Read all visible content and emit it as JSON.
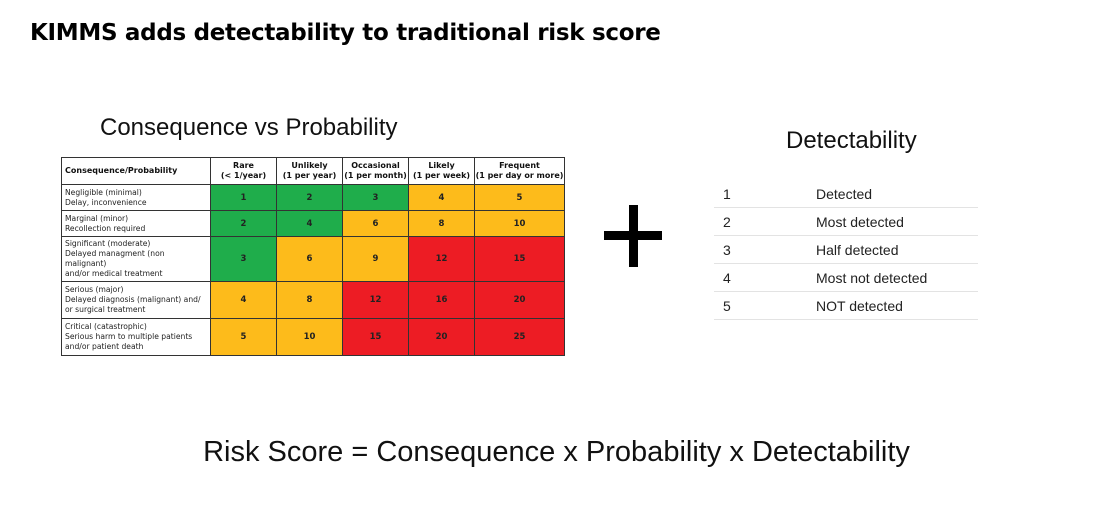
{
  "slide_title": "KIMMS adds detectability to traditional risk score",
  "matrix": {
    "title": "Consequence vs Probability",
    "corner_header": "Consequence/Probability",
    "columns": [
      {
        "name": "Rare",
        "sub": "(< 1/year)"
      },
      {
        "name": "Unlikely",
        "sub": "(1 per year)"
      },
      {
        "name": "Occasional",
        "sub": "(1 per month)"
      },
      {
        "name": "Likely",
        "sub": "(1 per week)"
      },
      {
        "name": "Frequent",
        "sub": "(1 per day or more)"
      }
    ],
    "rows": [
      {
        "label": [
          "Negligible (minimal)",
          "Delay, inconvenience"
        ],
        "values": [
          "1",
          "2",
          "3",
          "4",
          "5"
        ],
        "colors": [
          "green",
          "green",
          "green",
          "yellow",
          "yellow"
        ]
      },
      {
        "label": [
          "Marginal (minor)",
          "Recollection required"
        ],
        "values": [
          "2",
          "4",
          "6",
          "8",
          "10"
        ],
        "colors": [
          "green",
          "green",
          "yellow",
          "yellow",
          "yellow"
        ]
      },
      {
        "label": [
          "Significant (moderate)",
          "Delayed managment (non malignant)",
          "and/or medical treatment"
        ],
        "values": [
          "3",
          "6",
          "9",
          "12",
          "15"
        ],
        "colors": [
          "green",
          "yellow",
          "yellow",
          "red",
          "red"
        ]
      },
      {
        "label": [
          "Serious (major)",
          "Delayed diagnosis (malignant) and/",
          "or surgical treatment"
        ],
        "values": [
          "4",
          "8",
          "12",
          "16",
          "20"
        ],
        "colors": [
          "yellow",
          "yellow",
          "red",
          "red",
          "red"
        ]
      },
      {
        "label": [
          "Critical (catastrophic)",
          "Serious harm to multiple patients",
          "and/or patient death"
        ],
        "values": [
          "5",
          "10",
          "15",
          "20",
          "25"
        ],
        "colors": [
          "yellow",
          "yellow",
          "red",
          "red",
          "red"
        ]
      }
    ],
    "color_map": {
      "green": "#1fad4b",
      "yellow": "#fdbb1b",
      "red": "#ed1c24"
    }
  },
  "operator": "+",
  "detectability": {
    "title": "Detectability",
    "items": [
      {
        "num": "1",
        "label": "Detected"
      },
      {
        "num": "2",
        "label": "Most detected"
      },
      {
        "num": "3",
        "label": "Half detected"
      },
      {
        "num": "4",
        "label": "Most not detected"
      },
      {
        "num": "5",
        "label": "NOT detected"
      }
    ]
  },
  "formula": "Risk Score = Consequence x Probability x Detectability"
}
